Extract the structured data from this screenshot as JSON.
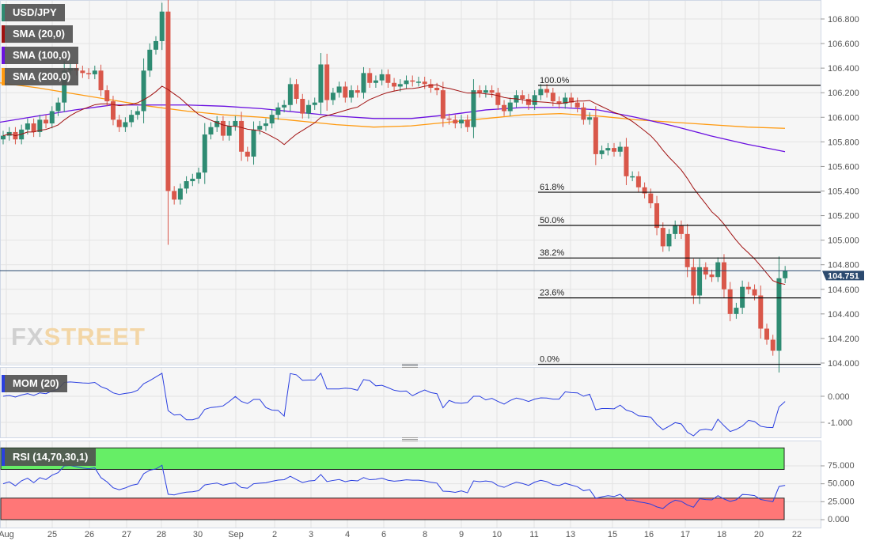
{
  "legend": {
    "symbol": "USD/JPY",
    "sma20": "SMA (20,0)",
    "sma100": "SMA (100,0)",
    "sma200": "SMA (200,0)",
    "mom": "MOM (20)",
    "rsi": "RSI (14,70,30,1)"
  },
  "watermark": {
    "fx": "FX",
    "street": "STREET"
  },
  "colors": {
    "up": "#2e8b72",
    "down": "#d9574a",
    "sma20": "#a01010",
    "sma100": "#6a10e0",
    "sma200": "#ff9a10",
    "mom": "#2a3fe0",
    "rsi": "#2a3fe0",
    "rsi_over": "#66ee66",
    "rsi_under": "#ff7777",
    "last": "#2b4a6f"
  },
  "chart_data": [
    {
      "type": "candlestick",
      "title": "USD/JPY",
      "x_ticks": [
        "Aug",
        "25",
        "26",
        "27",
        "28",
        "30",
        "Sep",
        "2",
        "3",
        "4",
        "6",
        "8",
        "9",
        "10",
        "11",
        "13",
        "15",
        "16",
        "17",
        "18",
        "20",
        "22"
      ],
      "y_ticks": [
        "104.000",
        "104.200",
        "104.400",
        "104.600",
        "104.800",
        "105.000",
        "105.200",
        "105.400",
        "105.600",
        "105.800",
        "106.000",
        "106.200",
        "106.400",
        "106.600",
        "106.800"
      ],
      "ylim": [
        104.0,
        106.8
      ],
      "last_price": "104.751",
      "close": [
        105.85,
        105.88,
        105.82,
        105.9,
        105.95,
        105.88,
        105.98,
        105.95,
        106.05,
        106.12,
        106.38,
        106.4,
        106.38,
        106.36,
        106.35,
        106.38,
        106.22,
        106.13,
        105.98,
        105.92,
        105.96,
        106.02,
        106.05,
        106.38,
        106.55,
        106.62,
        106.86,
        105.4,
        105.33,
        105.42,
        105.48,
        105.5,
        105.55,
        105.86,
        105.92,
        105.97,
        105.85,
        105.93,
        105.97,
        105.72,
        105.68,
        105.9,
        105.93,
        105.95,
        106.02,
        106.08,
        106.1,
        106.27,
        106.15,
        106.03,
        106.1,
        106.12,
        106.43,
        106.14,
        106.2,
        106.25,
        106.16,
        106.22,
        106.2,
        106.36,
        106.28,
        106.3,
        106.35,
        106.28,
        106.25,
        106.27,
        106.3,
        106.29,
        106.29,
        106.27,
        106.24,
        106.22,
        105.99,
        105.98,
        105.95,
        105.98,
        105.92,
        106.22,
        106.2,
        106.22,
        106.2,
        106.1,
        106.05,
        106.12,
        106.18,
        106.15,
        106.1,
        106.18,
        106.23,
        106.2,
        106.13,
        106.11,
        106.16,
        106.12,
        106.08,
        105.98,
        106.0,
        105.7,
        105.73,
        105.75,
        105.72,
        105.76,
        105.52,
        105.52,
        105.43,
        105.38,
        105.3,
        105.1,
        104.95,
        105.05,
        105.12,
        105.05,
        104.78,
        104.55,
        104.78,
        104.72,
        104.7,
        104.82,
        104.6,
        104.4,
        104.45,
        104.62,
        104.6,
        104.55,
        104.28,
        104.19,
        104.1,
        104.69,
        104.75
      ],
      "sma100": [
        105.96,
        106.01,
        106.06,
        106.1,
        106.1,
        106.1,
        106.09,
        106.07,
        106.04,
        106.01,
        105.99,
        105.99,
        106.02,
        106.06,
        106.08,
        106.08,
        106.06,
        106.0,
        105.93,
        105.85,
        105.78,
        105.72
      ],
      "sma200": [
        106.28,
        106.24,
        106.19,
        106.14,
        106.09,
        106.05,
        106.02,
        106.0,
        105.97,
        105.94,
        105.92,
        105.93,
        105.96,
        105.99,
        106.02,
        106.03,
        106.01,
        105.98,
        105.96,
        105.94,
        105.92,
        105.91
      ],
      "fibonacci": [
        {
          "label": "100.0%",
          "price": 106.26
        },
        {
          "label": "61.8%",
          "price": 105.39
        },
        {
          "label": "50.0%",
          "price": 105.12
        },
        {
          "label": "38.2%",
          "price": 104.855
        },
        {
          "label": "23.6%",
          "price": 104.53
        },
        {
          "label": "0.0%",
          "price": 103.99
        }
      ]
    },
    {
      "type": "line",
      "title": "MOM (20)",
      "y_ticks": [
        "0.000",
        "-1.000"
      ],
      "ylim": [
        -1.2,
        1.0
      ]
    },
    {
      "type": "line",
      "title": "RSI (14,70,30,1)",
      "y_ticks": [
        "75.000",
        "50.000",
        "25.000",
        "0.000"
      ],
      "ylim": [
        0,
        100
      ],
      "overbought": 70,
      "oversold": 30
    }
  ]
}
